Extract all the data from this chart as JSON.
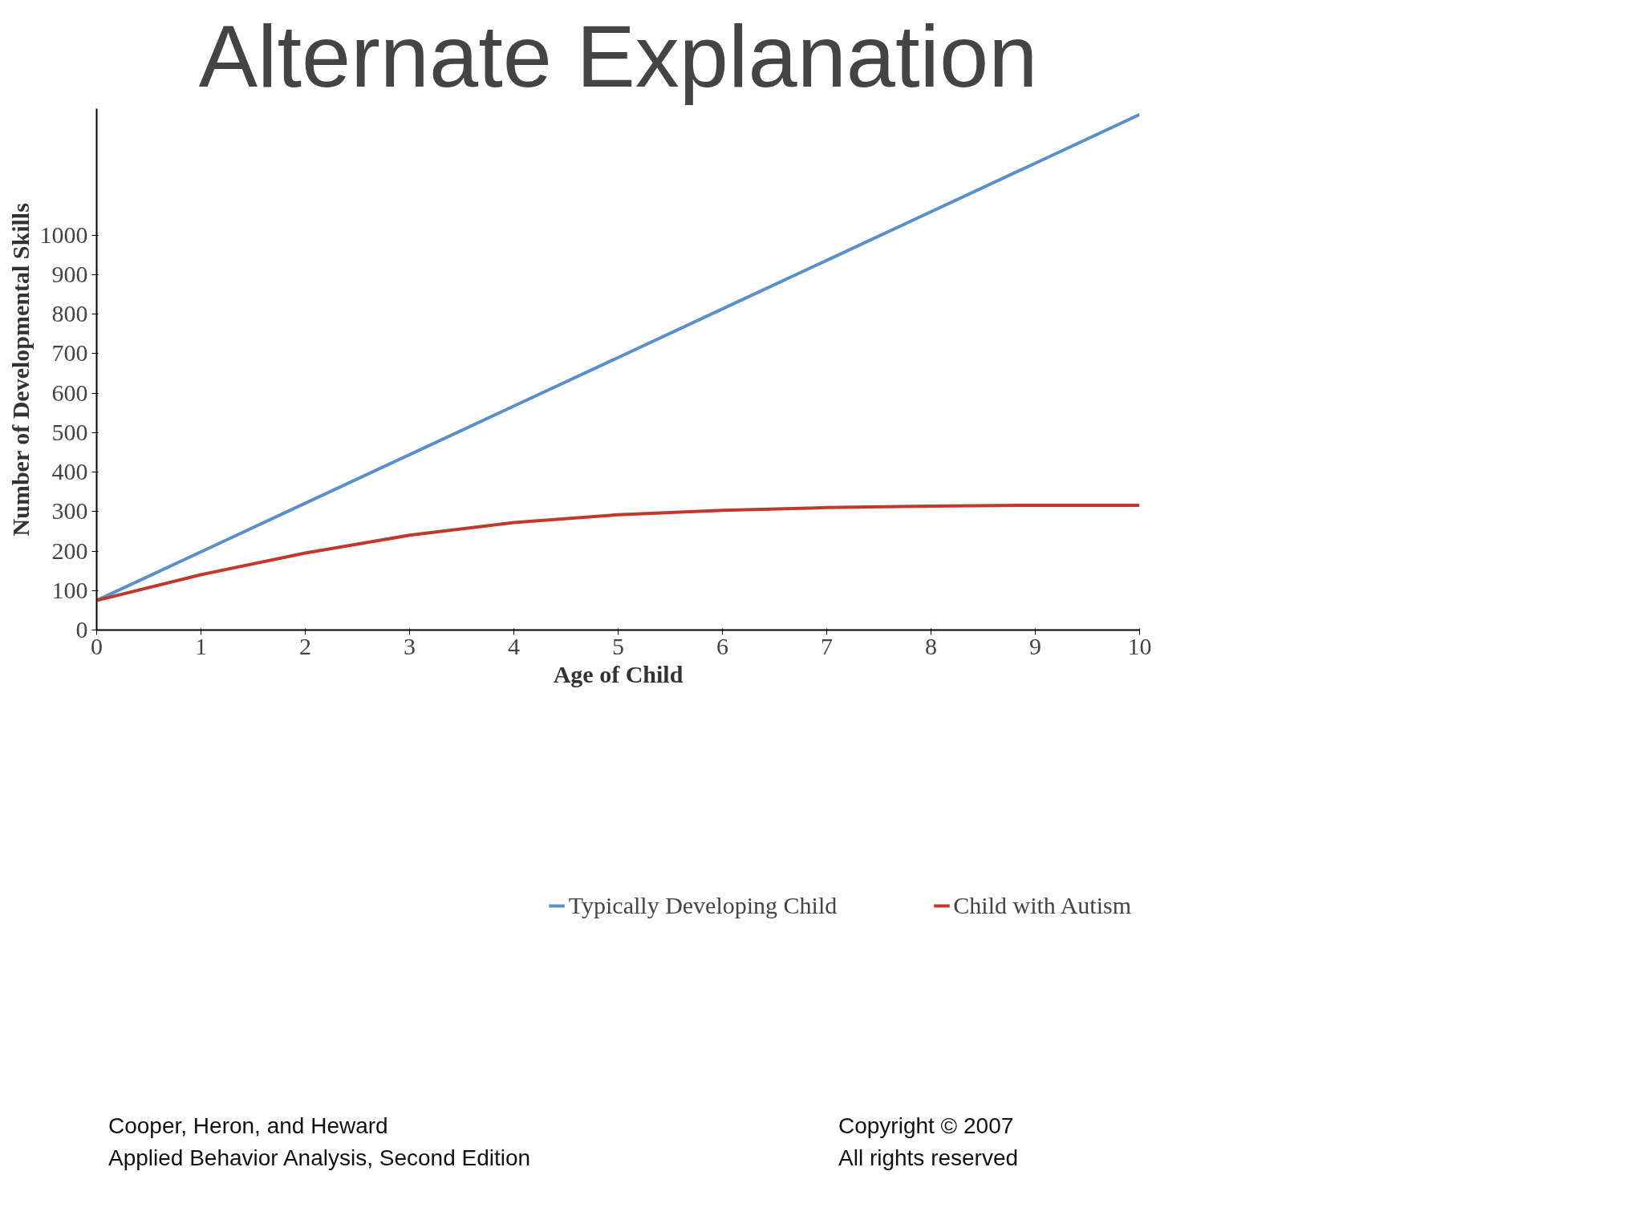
{
  "chart_data": {
    "type": "line",
    "title": "Alternate Explanation",
    "xlabel": "Age of Child",
    "ylabel": "Number of Developmental Skills",
    "x": [
      0,
      1,
      2,
      3,
      4,
      5,
      6,
      7,
      8,
      9,
      10
    ],
    "series": [
      {
        "name": "Typically Developing Child",
        "color": "#5b8fc7",
        "values": [
          75,
          198,
          321,
          444,
          567,
          690,
          813,
          936,
          1059,
          1182,
          1305
        ]
      },
      {
        "name": "Child with Autism",
        "color": "#c0392b",
        "values": [
          75,
          140,
          195,
          240,
          272,
          292,
          303,
          310,
          314,
          316,
          316
        ]
      }
    ],
    "xlim": [
      0,
      10
    ],
    "ylim": [
      0,
      1320
    ],
    "xticks": [
      0,
      1,
      2,
      3,
      4,
      5,
      6,
      7,
      8,
      9,
      10
    ],
    "yticks": [
      0,
      100,
      200,
      300,
      400,
      500,
      600,
      700,
      800,
      900,
      1000
    ],
    "legend": "bottom",
    "grid": false,
    "marker": "none",
    "line_style": "solid",
    "annotations": [
      "Cooper, Heron, and Heward",
      "Applied Behavior Analysis, Second Edition",
      "Copyright © 2007",
      "All rights reserved"
    ]
  }
}
